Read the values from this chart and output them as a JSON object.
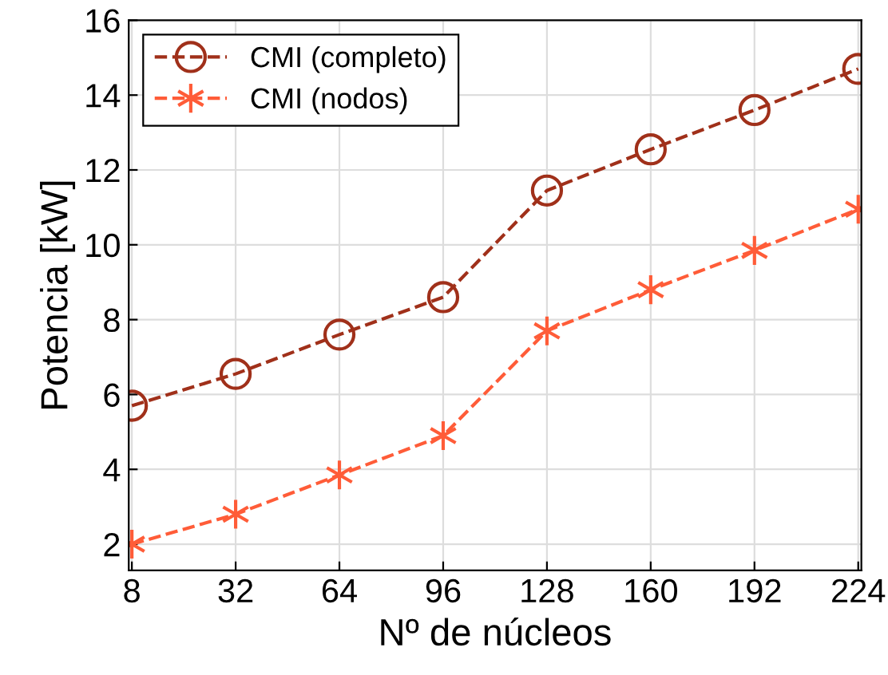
{
  "chart_data": {
    "type": "line",
    "xlabel": "Nº de núcleos",
    "ylabel": "Potencia [kW]",
    "categories": [
      "8",
      "32",
      "64",
      "96",
      "128",
      "160",
      "192",
      "224"
    ],
    "series": [
      {
        "name": "CMI (completo)",
        "color": "#a0301a",
        "marker": "circle",
        "values": [
          5.7,
          6.55,
          7.6,
          8.6,
          11.45,
          12.55,
          13.6,
          14.7
        ]
      },
      {
        "name": "CMI (nodos)",
        "color": "#ff5c38",
        "marker": "cross",
        "values": [
          2.0,
          2.8,
          3.85,
          4.9,
          7.7,
          8.8,
          9.85,
          10.95
        ]
      }
    ],
    "ylim": [
      1.3,
      16
    ],
    "yticks": [
      2,
      4,
      6,
      8,
      10,
      12,
      14,
      16
    ],
    "grid": true,
    "legend": "top left",
    "line_style": "dashed"
  }
}
